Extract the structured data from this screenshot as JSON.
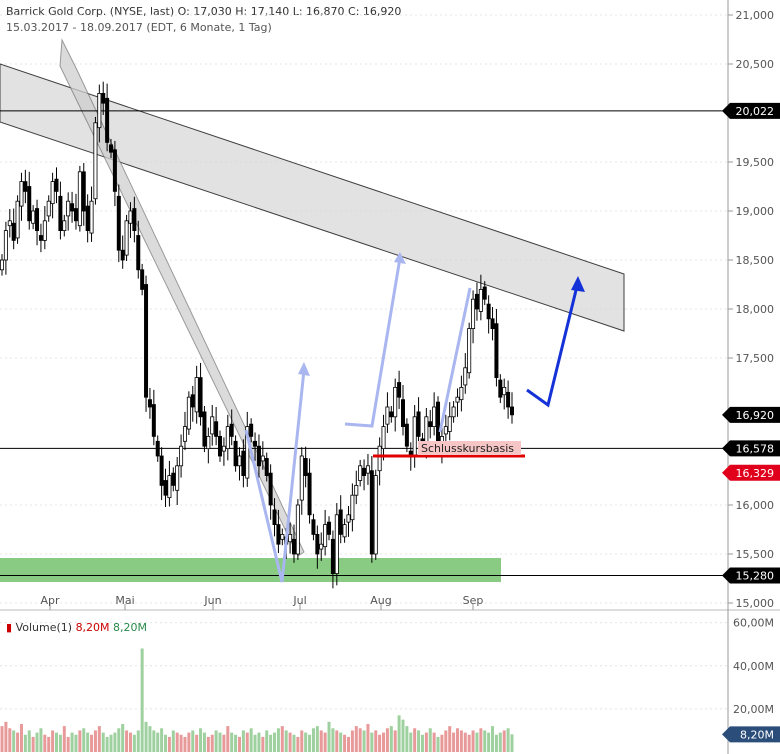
{
  "header": {
    "line1": "Barrick Gold Corp. (NYSE, last)  O: 17,030  H: 17,140  L: 16,870  C: 16,920",
    "line2": "15.03.2017 - 18.09.2017  (EDT, 6 Monate, 1 Tag)"
  },
  "colors": {
    "up": "#ffffff",
    "down": "#000000",
    "support_zone": "#7cc576",
    "channel_fill": "#d9d9d9",
    "arrow_light": "#a9b6f0",
    "arrow_dark": "#1432d8",
    "basis_line": "#e00000",
    "tag_black": "#000000",
    "tag_red": "#e0001b",
    "volume_up": "#e89a9a",
    "volume_down": "#9fd09f",
    "volume_tag": "#2a4d7a"
  },
  "price_axis": {
    "min": 15000,
    "max": 21000,
    "ticks": [
      {
        "v": 21000,
        "label": "21,000"
      },
      {
        "v": 20500,
        "label": "20,500"
      },
      {
        "v": 19500,
        "label": "19,500"
      },
      {
        "v": 19000,
        "label": "19,000"
      },
      {
        "v": 18500,
        "label": "18,500"
      },
      {
        "v": 18000,
        "label": "18,000"
      },
      {
        "v": 17500,
        "label": "17,500"
      },
      {
        "v": 16000,
        "label": "16,000"
      },
      {
        "v": 15500,
        "label": "15,500"
      },
      {
        "v": 15000,
        "label": "15,000"
      }
    ]
  },
  "levels": [
    {
      "v": 20022,
      "label": "20,022",
      "kind": "black",
      "line": true
    },
    {
      "v": 16578,
      "label": "16,578",
      "kind": "black",
      "line": true
    },
    {
      "v": 15280,
      "label": "15,280",
      "kind": "black",
      "line": true
    },
    {
      "v": 16920,
      "label": "16,920",
      "kind": "black",
      "line": false
    },
    {
      "v": 16329,
      "label": "16,329",
      "kind": "red",
      "line": false
    }
  ],
  "annotation": {
    "basis_label": "Schlusskursbasis"
  },
  "x_axis": [
    "Apr",
    "Mai",
    "Jun",
    "Jul",
    "Aug",
    "Sep"
  ],
  "volume": {
    "legend_name": "Volume(1)",
    "legend_v1": "8,20M",
    "legend_v2": "8,20M",
    "ticks": [
      {
        "v": 60,
        "label": "60,00M"
      },
      {
        "v": 40,
        "label": "40,00M"
      },
      {
        "v": 20,
        "label": "20,00M"
      }
    ],
    "last_tag": "8,20M"
  },
  "chart_data": {
    "type": "candlestick",
    "title": "Barrick Gold Corp. (NYSE, last)",
    "period": "15.03.2017 - 18.09.2017",
    "ylim": [
      15000,
      21000
    ],
    "x_ticks": [
      "Apr",
      "Mai",
      "Jun",
      "Jul",
      "Aug",
      "Sep"
    ],
    "last": {
      "open": 17030,
      "high": 17140,
      "low": 16870,
      "close": 16920
    },
    "closes": [
      18500,
      18800,
      18900,
      18700,
      19100,
      19300,
      19200,
      18900,
      19000,
      18800,
      18700,
      18900,
      19100,
      19300,
      19200,
      18800,
      18900,
      19100,
      19000,
      18900,
      19400,
      19000,
      18800,
      19100,
      19900,
      20200,
      20100,
      19700,
      19600,
      19200,
      18600,
      18500,
      18900,
      19000,
      18800,
      18400,
      18200,
      17100,
      17000,
      16700,
      16500,
      16200,
      16100,
      16300,
      16200,
      16400,
      16600,
      16800,
      17100,
      17000,
      17300,
      16900,
      16600,
      16700,
      16900,
      16700,
      16500,
      16600,
      16800,
      16700,
      16400,
      16500,
      16300,
      16800,
      16700,
      16600,
      16400,
      16500,
      16300,
      16000,
      15800,
      15600,
      15700,
      15600,
      15700,
      15500,
      16000,
      16500,
      16300,
      15900,
      15700,
      15500,
      15600,
      15800,
      15700,
      15300,
      15900,
      15700,
      15800,
      15900,
      16100,
      16200,
      16400,
      16300,
      16400,
      15500,
      16300,
      16600,
      16800,
      17000,
      16900,
      17200,
      17100,
      16800,
      16600,
      16500,
      16900,
      16700,
      16600,
      16900,
      16800,
      17000,
      16600,
      16700,
      16800,
      16900,
      17000,
      17100,
      17200,
      17400,
      17800,
      18100,
      18000,
      18200,
      18100,
      17900,
      17800,
      17300,
      17100,
      17200,
      17000,
      16920
    ],
    "volume_millions": [
      12,
      14,
      11,
      10,
      9,
      13,
      8,
      10,
      7,
      9,
      11,
      8,
      7,
      10,
      9,
      8,
      12,
      7,
      9,
      8,
      10,
      11,
      9,
      8,
      10,
      12,
      9,
      7,
      8,
      9,
      11,
      13,
      10,
      9,
      8,
      10,
      48,
      14,
      12,
      10,
      9,
      11,
      8,
      7,
      10,
      9,
      8,
      7,
      9,
      10,
      8,
      11,
      9,
      7,
      8,
      10,
      9,
      8,
      12,
      9,
      8,
      7,
      10,
      9,
      11,
      8,
      9,
      7,
      10,
      8,
      9,
      11,
      12,
      10,
      9,
      8,
      7,
      10,
      9,
      8,
      11,
      12,
      10,
      9,
      14,
      11,
      10,
      9,
      8,
      7,
      10,
      12,
      11,
      10,
      13,
      9,
      10,
      8,
      9,
      11,
      12,
      10,
      17,
      15,
      12,
      9,
      11,
      10,
      8,
      9,
      11,
      9,
      7,
      8,
      10,
      12,
      9,
      11,
      10,
      9,
      8,
      10,
      9,
      11,
      10,
      9,
      12,
      8,
      9,
      10,
      11,
      8.2
    ]
  }
}
